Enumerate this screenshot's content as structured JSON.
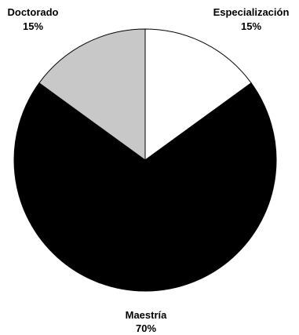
{
  "chart_data": {
    "type": "pie",
    "slices": [
      {
        "label": "Especialización",
        "value": 15,
        "value_label": "15%",
        "color": "#ffffff"
      },
      {
        "label": "Maestría",
        "value": 70,
        "value_label": "70%",
        "color": "#000000"
      },
      {
        "label": "Doctorado",
        "value": 15,
        "value_label": "15%",
        "color": "#c8c8c8"
      }
    ],
    "start": "top",
    "direction": "clockwise",
    "legend": "none"
  }
}
